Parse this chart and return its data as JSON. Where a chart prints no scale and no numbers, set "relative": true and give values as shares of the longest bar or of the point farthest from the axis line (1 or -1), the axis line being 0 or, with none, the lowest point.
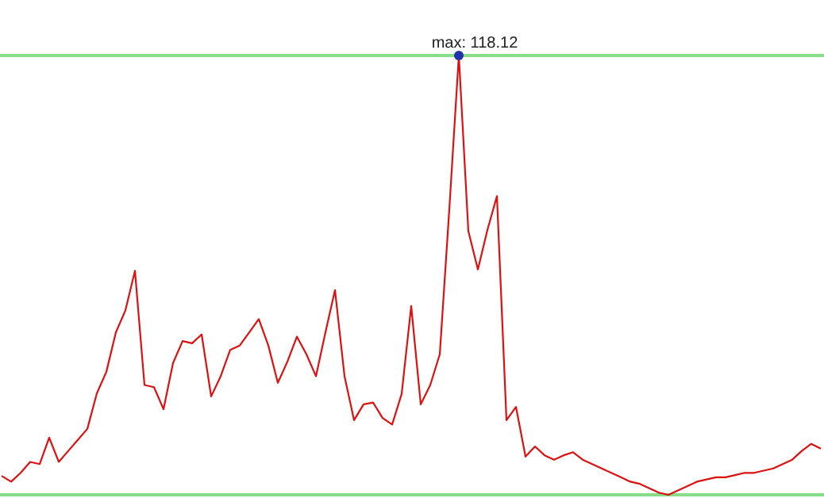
{
  "chart_data": {
    "type": "line",
    "relative": true,
    "marker": "none",
    "annotations": [
      "max: 118.12"
    ],
    "categories": [
      null,
      null,
      null,
      null,
      null,
      null,
      null,
      null,
      null,
      null,
      null,
      null,
      null,
      null,
      null,
      null,
      null,
      null,
      null,
      null,
      null,
      null,
      null,
      null,
      null,
      null,
      null,
      null,
      null,
      null,
      null,
      null,
      null,
      null,
      null,
      null,
      null,
      null,
      null,
      null,
      null,
      null,
      null,
      null,
      null,
      null,
      null,
      null,
      null,
      null,
      null,
      null,
      null,
      null,
      null,
      null,
      null,
      null,
      null,
      null,
      null,
      null,
      null,
      null,
      null,
      null,
      null,
      null,
      null,
      null,
      null,
      null,
      null,
      null,
      null,
      null,
      null,
      null,
      null,
      null,
      null,
      null,
      null,
      null,
      null,
      null,
      null
    ],
    "ref_lines": [
      {
        "axis": "y",
        "value": 1,
        "color": "#88dd88"
      },
      {
        "axis": "y",
        "value": 0,
        "color": "#88dd88"
      }
    ],
    "series": [
      {
        "color": "#dd1111",
        "values": [
          0.043,
          0.03,
          0.05,
          0.075,
          0.07,
          0.13,
          0.075,
          0.1,
          0.125,
          0.15,
          0.231,
          0.28,
          0.37,
          0.42,
          0.51,
          0.25,
          0.245,
          0.195,
          0.3,
          0.35,
          0.345,
          0.365,
          0.224,
          0.27,
          0.33,
          0.34,
          0.37,
          0.4,
          0.34,
          0.255,
          0.303,
          0.36,
          0.32,
          0.27,
          0.37,
          0.466,
          0.27,
          0.17,
          0.206,
          0.21,
          0.175,
          0.16,
          0.23,
          0.43,
          0.206,
          0.25,
          0.32,
          0.65,
          1,
          0.6,
          0.513,
          0.603,
          0.68,
          0.17,
          0.2,
          0.087,
          0.11,
          0.09,
          0.08,
          0.09,
          0.097,
          0.08,
          0.07,
          0.06,
          0.05,
          0.04,
          0.03,
          0.025,
          0.015,
          0.005,
          0,
          0.01,
          0.02,
          0.03,
          0.035,
          0.04,
          0.04,
          0.045,
          0.05,
          0.05,
          0.055,
          0.06,
          0.07,
          0.08,
          0.1,
          0.116,
          0.105
        ]
      }
    ]
  }
}
